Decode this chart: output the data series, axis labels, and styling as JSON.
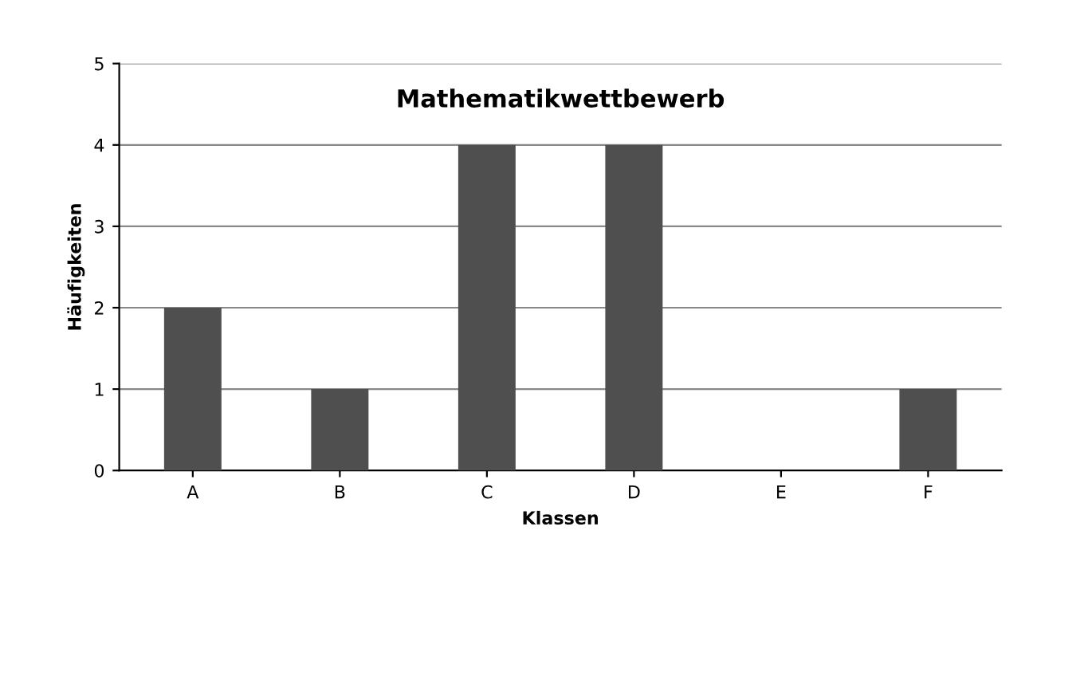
{
  "chart_data": {
    "type": "bar",
    "title": "Mathematikwettbewerb",
    "xlabel": "Klassen",
    "ylabel": "Häufigkeiten",
    "categories": [
      "A",
      "B",
      "C",
      "D",
      "E",
      "F"
    ],
    "values": [
      2,
      1,
      4,
      4,
      0,
      1
    ],
    "color": "#4f4f4f",
    "ylim": [
      0,
      5
    ],
    "yticks": [
      0,
      1,
      2,
      3,
      4,
      5
    ],
    "grid": "y",
    "legend": false
  }
}
